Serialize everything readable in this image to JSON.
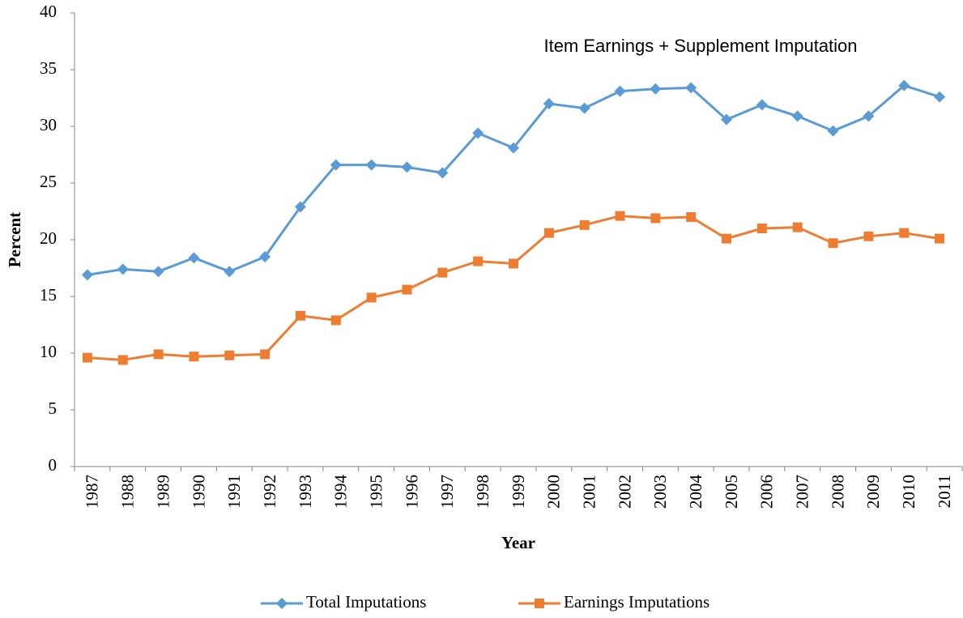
{
  "chart_data": {
    "type": "line",
    "annotation": "Item Earnings + Supplement Imputation",
    "x_label": "Year",
    "y_label": "Percent",
    "categories": [
      "1987",
      "1988",
      "1989",
      "1990",
      "1991",
      "1992",
      "1993",
      "1994",
      "1995",
      "1996",
      "1997",
      "1998",
      "1999",
      "2000",
      "2001",
      "2002",
      "2003",
      "2004",
      "2005",
      "2006",
      "2007",
      "2008",
      "2009",
      "2010",
      "2011"
    ],
    "series": [
      {
        "name": "Total Imputations",
        "color": "#5b9bd5",
        "marker": "diamond",
        "values": [
          16.9,
          17.4,
          17.2,
          18.4,
          17.2,
          18.5,
          22.9,
          26.6,
          26.6,
          26.4,
          25.9,
          29.4,
          28.1,
          32.0,
          31.6,
          33.1,
          33.3,
          33.4,
          30.6,
          31.9,
          30.9,
          29.6,
          30.9,
          33.6,
          32.6
        ]
      },
      {
        "name": "Earnings Imputations",
        "color": "#ed7d31",
        "marker": "square",
        "values": [
          9.6,
          9.4,
          9.9,
          9.7,
          9.8,
          9.9,
          13.3,
          12.9,
          14.9,
          15.6,
          17.1,
          18.1,
          17.9,
          20.6,
          21.3,
          22.1,
          21.9,
          22.0,
          20.1,
          21.0,
          21.1,
          19.7,
          20.3,
          20.6,
          20.1
        ]
      }
    ],
    "ylim": [
      0,
      40
    ],
    "yticks": [
      0,
      5,
      10,
      15,
      20,
      25,
      30,
      35,
      40
    ],
    "grid": false,
    "legend": "bottom"
  }
}
